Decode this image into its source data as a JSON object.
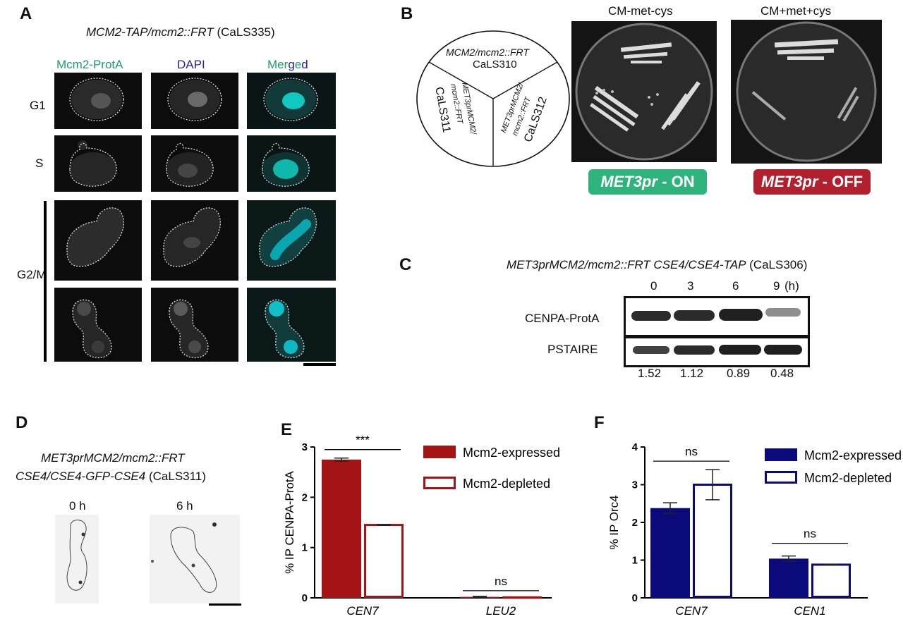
{
  "panelA": {
    "letter": "A",
    "title_italic": "MCM2-TAP/mcm2::FRT",
    "title_strain": "(CaLS335)",
    "col_mcm2": "Mcm2-ProtA",
    "col_dapi": "DAPI",
    "merged_letters": [
      "M",
      "e",
      "r",
      "g",
      "e",
      "d"
    ],
    "merged_colors": [
      "#1d9e6d",
      "#1d9e6d",
      "#1d9e6d",
      "#2222aa",
      "#1d9e6d",
      "#2222aa"
    ],
    "row_g1": "G1",
    "row_s": "S",
    "row_g2m": "G2/M"
  },
  "panelB": {
    "letter": "B",
    "sector1_line1": "MCM2/mcm2::FRT",
    "sector1_line2": "CaLS310",
    "sector2_line1": "MET3prMCM2/",
    "sector2_line2": "mcm2::FRT",
    "sector2_line3": "CaLS311",
    "sector3_line1": "MET3prMCM2/",
    "sector3_line2": "mcm2::FRT",
    "sector3_line3": "CaLS312",
    "plate1_title": "CM-met-cys",
    "plate2_title": "CM+met+cys",
    "badge_on_italic": "MET3pr",
    "badge_on_rest": " - ON",
    "badge_off_italic": "MET3pr",
    "badge_off_rest": " - OFF",
    "badge_on_color": "#2fb37c",
    "badge_off_color": "#b21f2d"
  },
  "panelC": {
    "letter": "C",
    "title_italic": "MET3prMCM2/mcm2::FRT CSE4/CSE4-TAP",
    "title_strain": "(CaLS306)",
    "timepoints": [
      "0",
      "3",
      "6",
      "9"
    ],
    "time_unit": "(h)",
    "row1_label": "CENPA-ProtA",
    "row2_label": "PSTAIRE",
    "ratios": [
      "1.52",
      "1.12",
      "0.89",
      "0.48"
    ],
    "band_intensity_row1": [
      0.85,
      0.85,
      0.9,
      0.4
    ],
    "band_intensity_row2": [
      0.75,
      0.85,
      0.9,
      0.9
    ]
  },
  "panelD": {
    "letter": "D",
    "title_line1": "MET3prMCM2/mcm2::FRT",
    "title_line2_italic": "CSE4/CSE4-GFP-CSE4",
    "title_line2_strain": "(CaLS311)",
    "time0": "0 h",
    "time6": "6 h"
  },
  "chart_data": [
    {
      "panel": "E",
      "type": "bar",
      "categories": [
        "CEN7",
        "LEU2"
      ],
      "series": [
        {
          "name": "Mcm2-expressed",
          "values": [
            2.75,
            0.02
          ],
          "errors": [
            0.03,
            0.01
          ],
          "style": "filled",
          "color": "#a31515"
        },
        {
          "name": "Mcm2-depleted",
          "values": [
            1.45,
            0.01
          ],
          "errors": [
            0.01,
            0.005
          ],
          "style": "outline",
          "color": "#a31515"
        }
      ],
      "ylabel": "% IP CENPA-ProtA",
      "ylim": [
        0,
        3
      ],
      "yticks": [
        "0",
        "1",
        "2",
        "3"
      ],
      "annotations": [
        "***",
        "ns"
      ]
    },
    {
      "panel": "F",
      "type": "bar",
      "categories": [
        "CEN7",
        "CEN1"
      ],
      "series": [
        {
          "name": "Mcm2-expressed",
          "values": [
            2.38,
            1.04
          ],
          "errors": [
            0.14,
            0.07
          ],
          "style": "filled",
          "color": "#0a0a7a"
        },
        {
          "name": "Mcm2-depleted",
          "values": [
            3.0,
            0.88
          ],
          "errors": [
            0.4,
            0.01
          ],
          "style": "outline",
          "color": "#0a0a7a"
        }
      ],
      "ylabel": "% IP Orc4",
      "ylim": [
        0,
        4
      ],
      "yticks": [
        "0",
        "1",
        "2",
        "3",
        "4"
      ],
      "annotations": [
        "ns",
        "ns"
      ]
    }
  ]
}
